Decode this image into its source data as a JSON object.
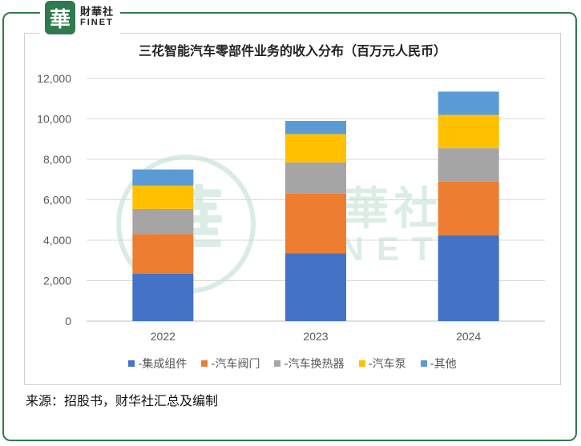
{
  "brand": {
    "badge_glyph": "華",
    "name_cn": "財華社",
    "name_en": "FINET"
  },
  "watermark": {
    "glyph": "華",
    "name_cn": "財華社",
    "name_en": "FINET"
  },
  "source_text": "来源：招股书，财华社汇总及编制",
  "colors": {
    "frame": "#2f7a4f",
    "grid": "#d9d9d9",
    "watermark": "#b9dccd"
  },
  "chart_data": {
    "type": "bar",
    "stacked": true,
    "title": "三花智能汽车零部件业务的收入分布（百万元人民币）",
    "xlabel": "",
    "ylabel": "",
    "categories": [
      "2022",
      "2023",
      "2024"
    ],
    "ylim": [
      0,
      12000
    ],
    "yticks": [
      "0",
      "2,000",
      "4,000",
      "6,000",
      "8,000",
      "10,000",
      "12,000"
    ],
    "grid": true,
    "legend_position": "bottom",
    "series": [
      {
        "name": "-集成组件",
        "color": "#4472c4",
        "values": [
          2350,
          3350,
          4250
        ]
      },
      {
        "name": "-汽车阀门",
        "color": "#ed7d31",
        "values": [
          1950,
          2950,
          2650
        ]
      },
      {
        "name": "-汽车换热器",
        "color": "#a5a5a5",
        "values": [
          1250,
          1550,
          1650
        ]
      },
      {
        "name": "-汽车泵",
        "color": "#ffc000",
        "values": [
          1150,
          1400,
          1650
        ]
      },
      {
        "name": "-其他",
        "color": "#5b9bd5",
        "values": [
          800,
          650,
          1150
        ]
      }
    ]
  }
}
